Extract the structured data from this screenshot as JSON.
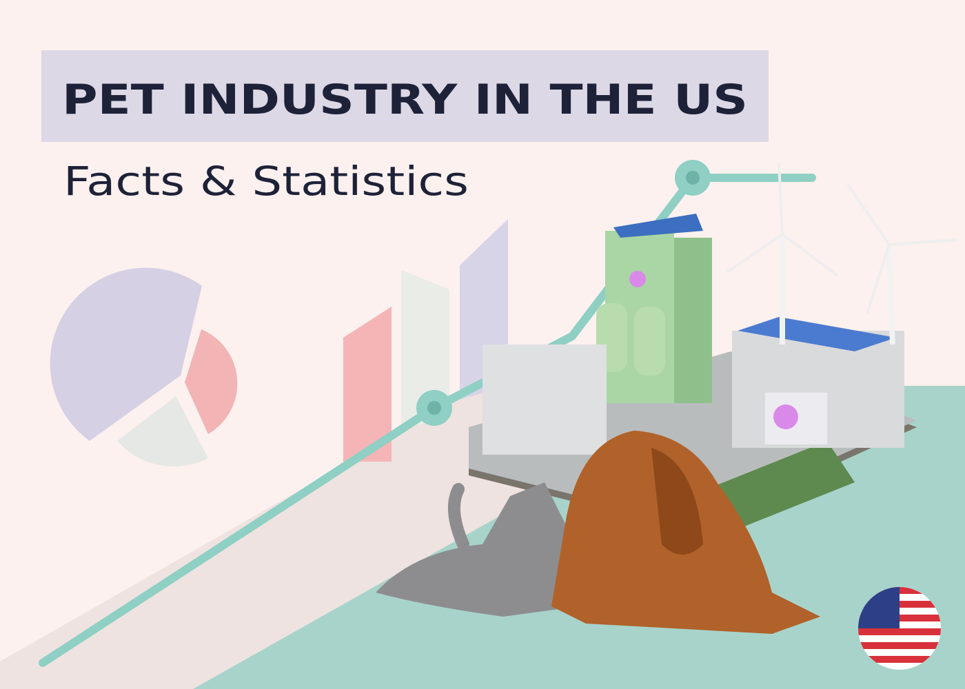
{
  "header": {
    "title": "PET INDUSTRY IN THE US",
    "subtitle": "Facts & Statistics"
  }
}
